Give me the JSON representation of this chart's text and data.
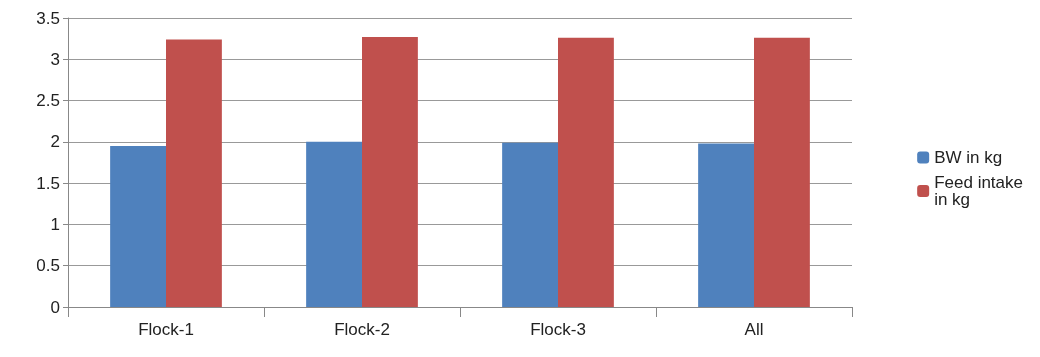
{
  "chart_data": {
    "type": "bar",
    "categories": [
      "Flock-1",
      "Flock-2",
      "Flock-3",
      "All"
    ],
    "series": [
      {
        "name": "BW in kg",
        "color": "#4f81bd",
        "values": [
          1.95,
          2.0,
          1.99,
          1.98
        ]
      },
      {
        "name": "Feed intake in kg",
        "color": "#c0504d",
        "values": [
          3.24,
          3.27,
          3.26,
          3.26
        ]
      }
    ],
    "ylim": [
      0,
      3.5
    ],
    "yticks": [
      0,
      0.5,
      1,
      1.5,
      2,
      2.5,
      3,
      3.5
    ],
    "grid": "y",
    "legend": "right"
  }
}
